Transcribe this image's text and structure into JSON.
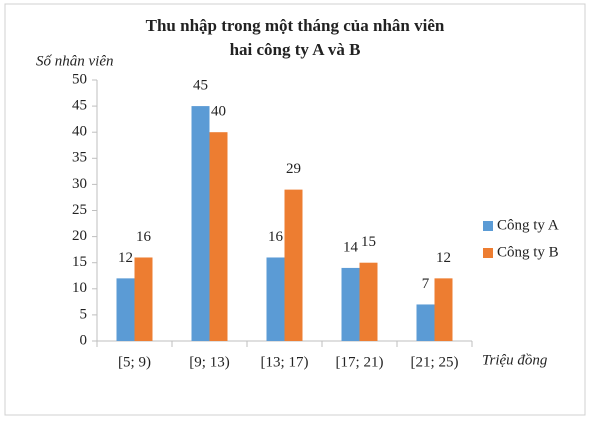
{
  "chart_data": {
    "type": "bar",
    "title": [
      "Thu nhập trong một tháng của nhân viên",
      "hai công ty A và B"
    ],
    "y_label": "Số nhân viên",
    "x_label": "Triệu đồng",
    "categories": [
      "[5; 9)",
      "[9; 13)",
      "[13; 17)",
      "[17; 21)",
      "[21; 25)"
    ],
    "series": [
      {
        "name": "Công ty A",
        "color": "#5b9bd5",
        "values": [
          12,
          45,
          16,
          14,
          7
        ]
      },
      {
        "name": "Công ty B",
        "color": "#ed7d31",
        "values": [
          16,
          40,
          29,
          15,
          12
        ]
      }
    ],
    "ylim": [
      0,
      50
    ],
    "yticks": [
      0,
      5,
      10,
      15,
      20,
      25,
      30,
      35,
      40,
      45,
      50
    ],
    "grid": false,
    "legend": "right"
  }
}
